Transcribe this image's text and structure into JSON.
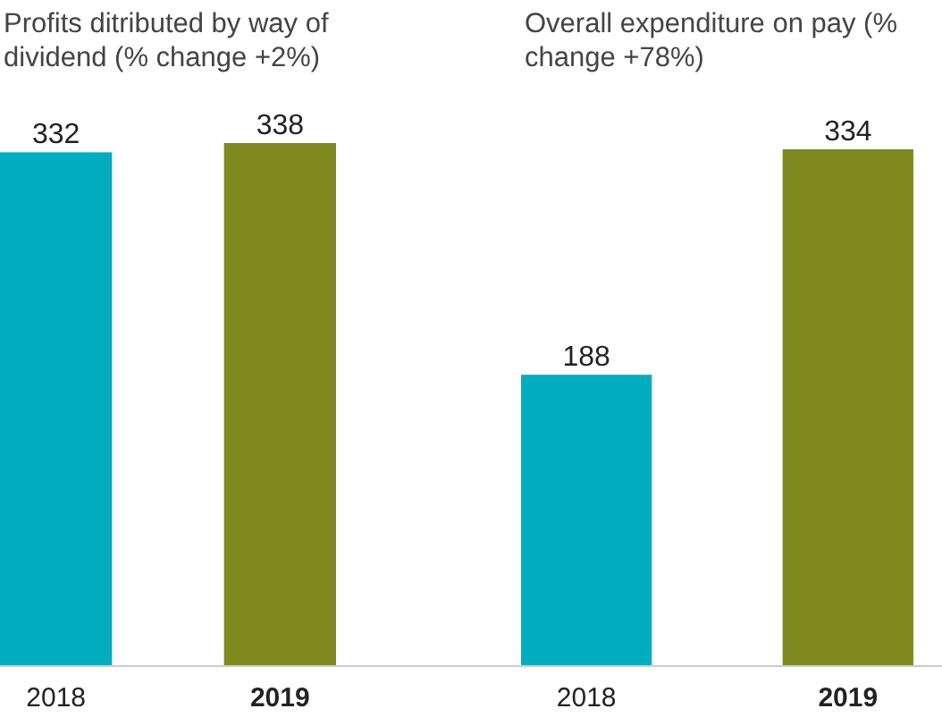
{
  "chart_data": [
    {
      "type": "bar",
      "title": "Profits ditributed by way of dividend (% change +2%)",
      "categories": [
        "2018",
        "2019"
      ],
      "values": [
        332,
        338
      ],
      "colors": [
        "#00adbf",
        "#7f8a1e"
      ],
      "data_labels": true
    },
    {
      "type": "bar",
      "title": "Overall expenditure on pay (% change +78%)",
      "categories": [
        "2018",
        "2019"
      ],
      "values": [
        188,
        334
      ],
      "colors": [
        "#00adbf",
        "#7f8a1e"
      ],
      "data_labels": true
    }
  ]
}
